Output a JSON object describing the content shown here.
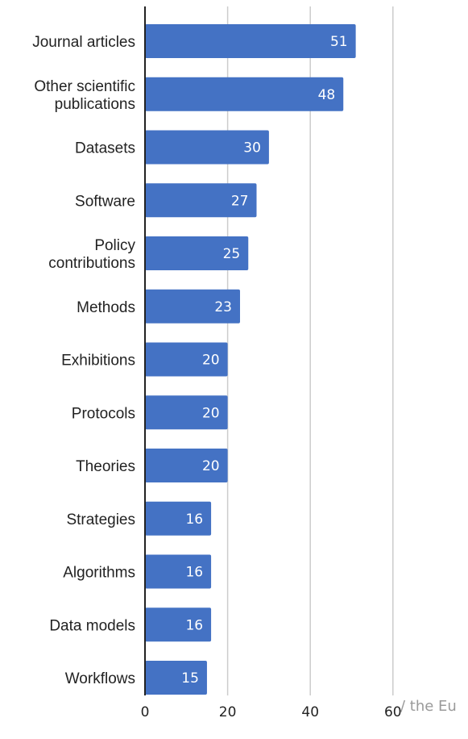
{
  "chart_data": {
    "type": "bar",
    "orientation": "horizontal",
    "categories": [
      "Journal articles",
      "Other scientific publications",
      "Datasets",
      "Software",
      "Policy contributions",
      "Methods",
      "Exhibitions",
      "Protocols",
      "Theories",
      "Strategies",
      "Algorithms",
      "Data models",
      "Workflows"
    ],
    "category_lines": [
      [
        "Journal articles"
      ],
      [
        "Other scientific",
        "publications"
      ],
      [
        "Datasets"
      ],
      [
        "Software"
      ],
      [
        "Policy",
        "contributions"
      ],
      [
        "Methods"
      ],
      [
        "Exhibitions"
      ],
      [
        "Protocols"
      ],
      [
        "Theories"
      ],
      [
        "Strategies"
      ],
      [
        "Algorithms"
      ],
      [
        "Data models"
      ],
      [
        "Workflows"
      ]
    ],
    "values": [
      51,
      48,
      30,
      27,
      25,
      23,
      20,
      20,
      20,
      16,
      16,
      16,
      15
    ],
    "x_ticks": [
      "0",
      "20",
      "40",
      "60"
    ],
    "xlim": [
      0,
      60
    ],
    "grid": true,
    "bar_color": "#4472c4",
    "grid_color": "#cccccc",
    "axis_color": "#222222"
  },
  "footer": {
    "text": "/ the Eu"
  }
}
